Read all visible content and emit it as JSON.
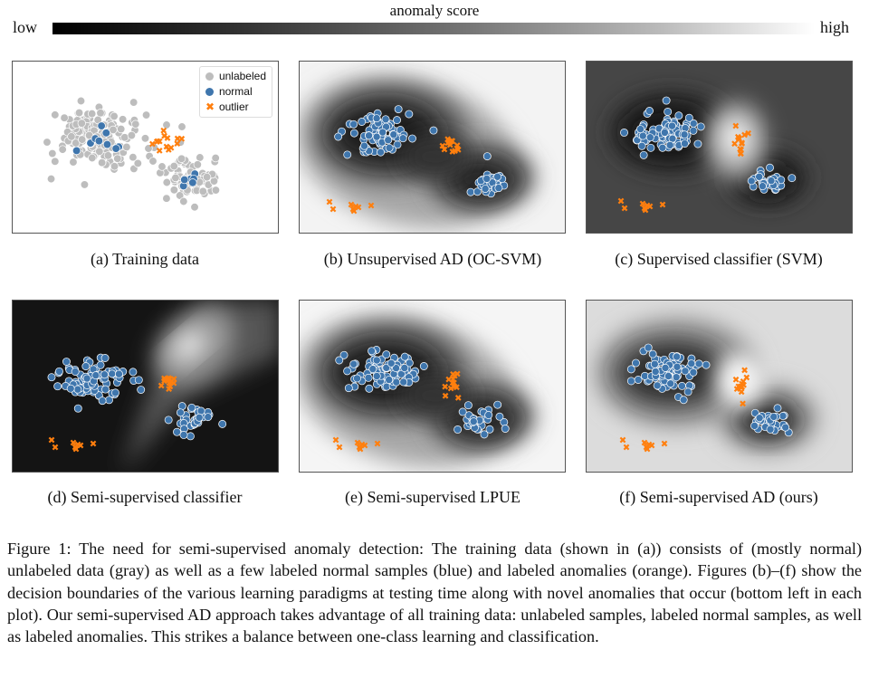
{
  "colorbar": {
    "title": "anomaly score",
    "low_label": "low",
    "high_label": "high"
  },
  "legend": {
    "items": [
      {
        "label": "unlabeled",
        "color": "#bdbdbd",
        "marker": "circle"
      },
      {
        "label": "normal",
        "color": "#3f76ad",
        "marker": "circle"
      },
      {
        "label": "outlier",
        "color": "#ff7f0e",
        "marker": "x"
      }
    ]
  },
  "panels": [
    {
      "caption": "(a)  Training data",
      "background": "none"
    },
    {
      "caption": "(b)  Unsupervised AD (OC-SVM)",
      "background": "oc-svm"
    },
    {
      "caption": "(c)  Supervised classifier (SVM)",
      "background": "svm"
    },
    {
      "caption": "(d)  Semi-supervised classifier",
      "background": "semi-classifier"
    },
    {
      "caption": "(e)  Semi-supervised LPUE",
      "background": "lpue"
    },
    {
      "caption": "(f)  Semi-supervised AD (ours)",
      "background": "ours"
    }
  ],
  "figure_caption": "Figure 1: The need for semi-supervised anomaly detection: The training data (shown in (a)) consists of (mostly normal) unlabeled data (gray) as well as a few labeled normal samples (blue) and labeled anomalies (orange). Figures (b)–(f) show the decision boundaries of the various learning paradigms at testing time along with novel anomalies that occur (bottom left in each plot). Our semi-supervised AD approach takes advantage of all training data: unlabeled samples, labeled normal samples, as well as labeled anomalies. This strikes a balance between one-class learning and classification."
}
